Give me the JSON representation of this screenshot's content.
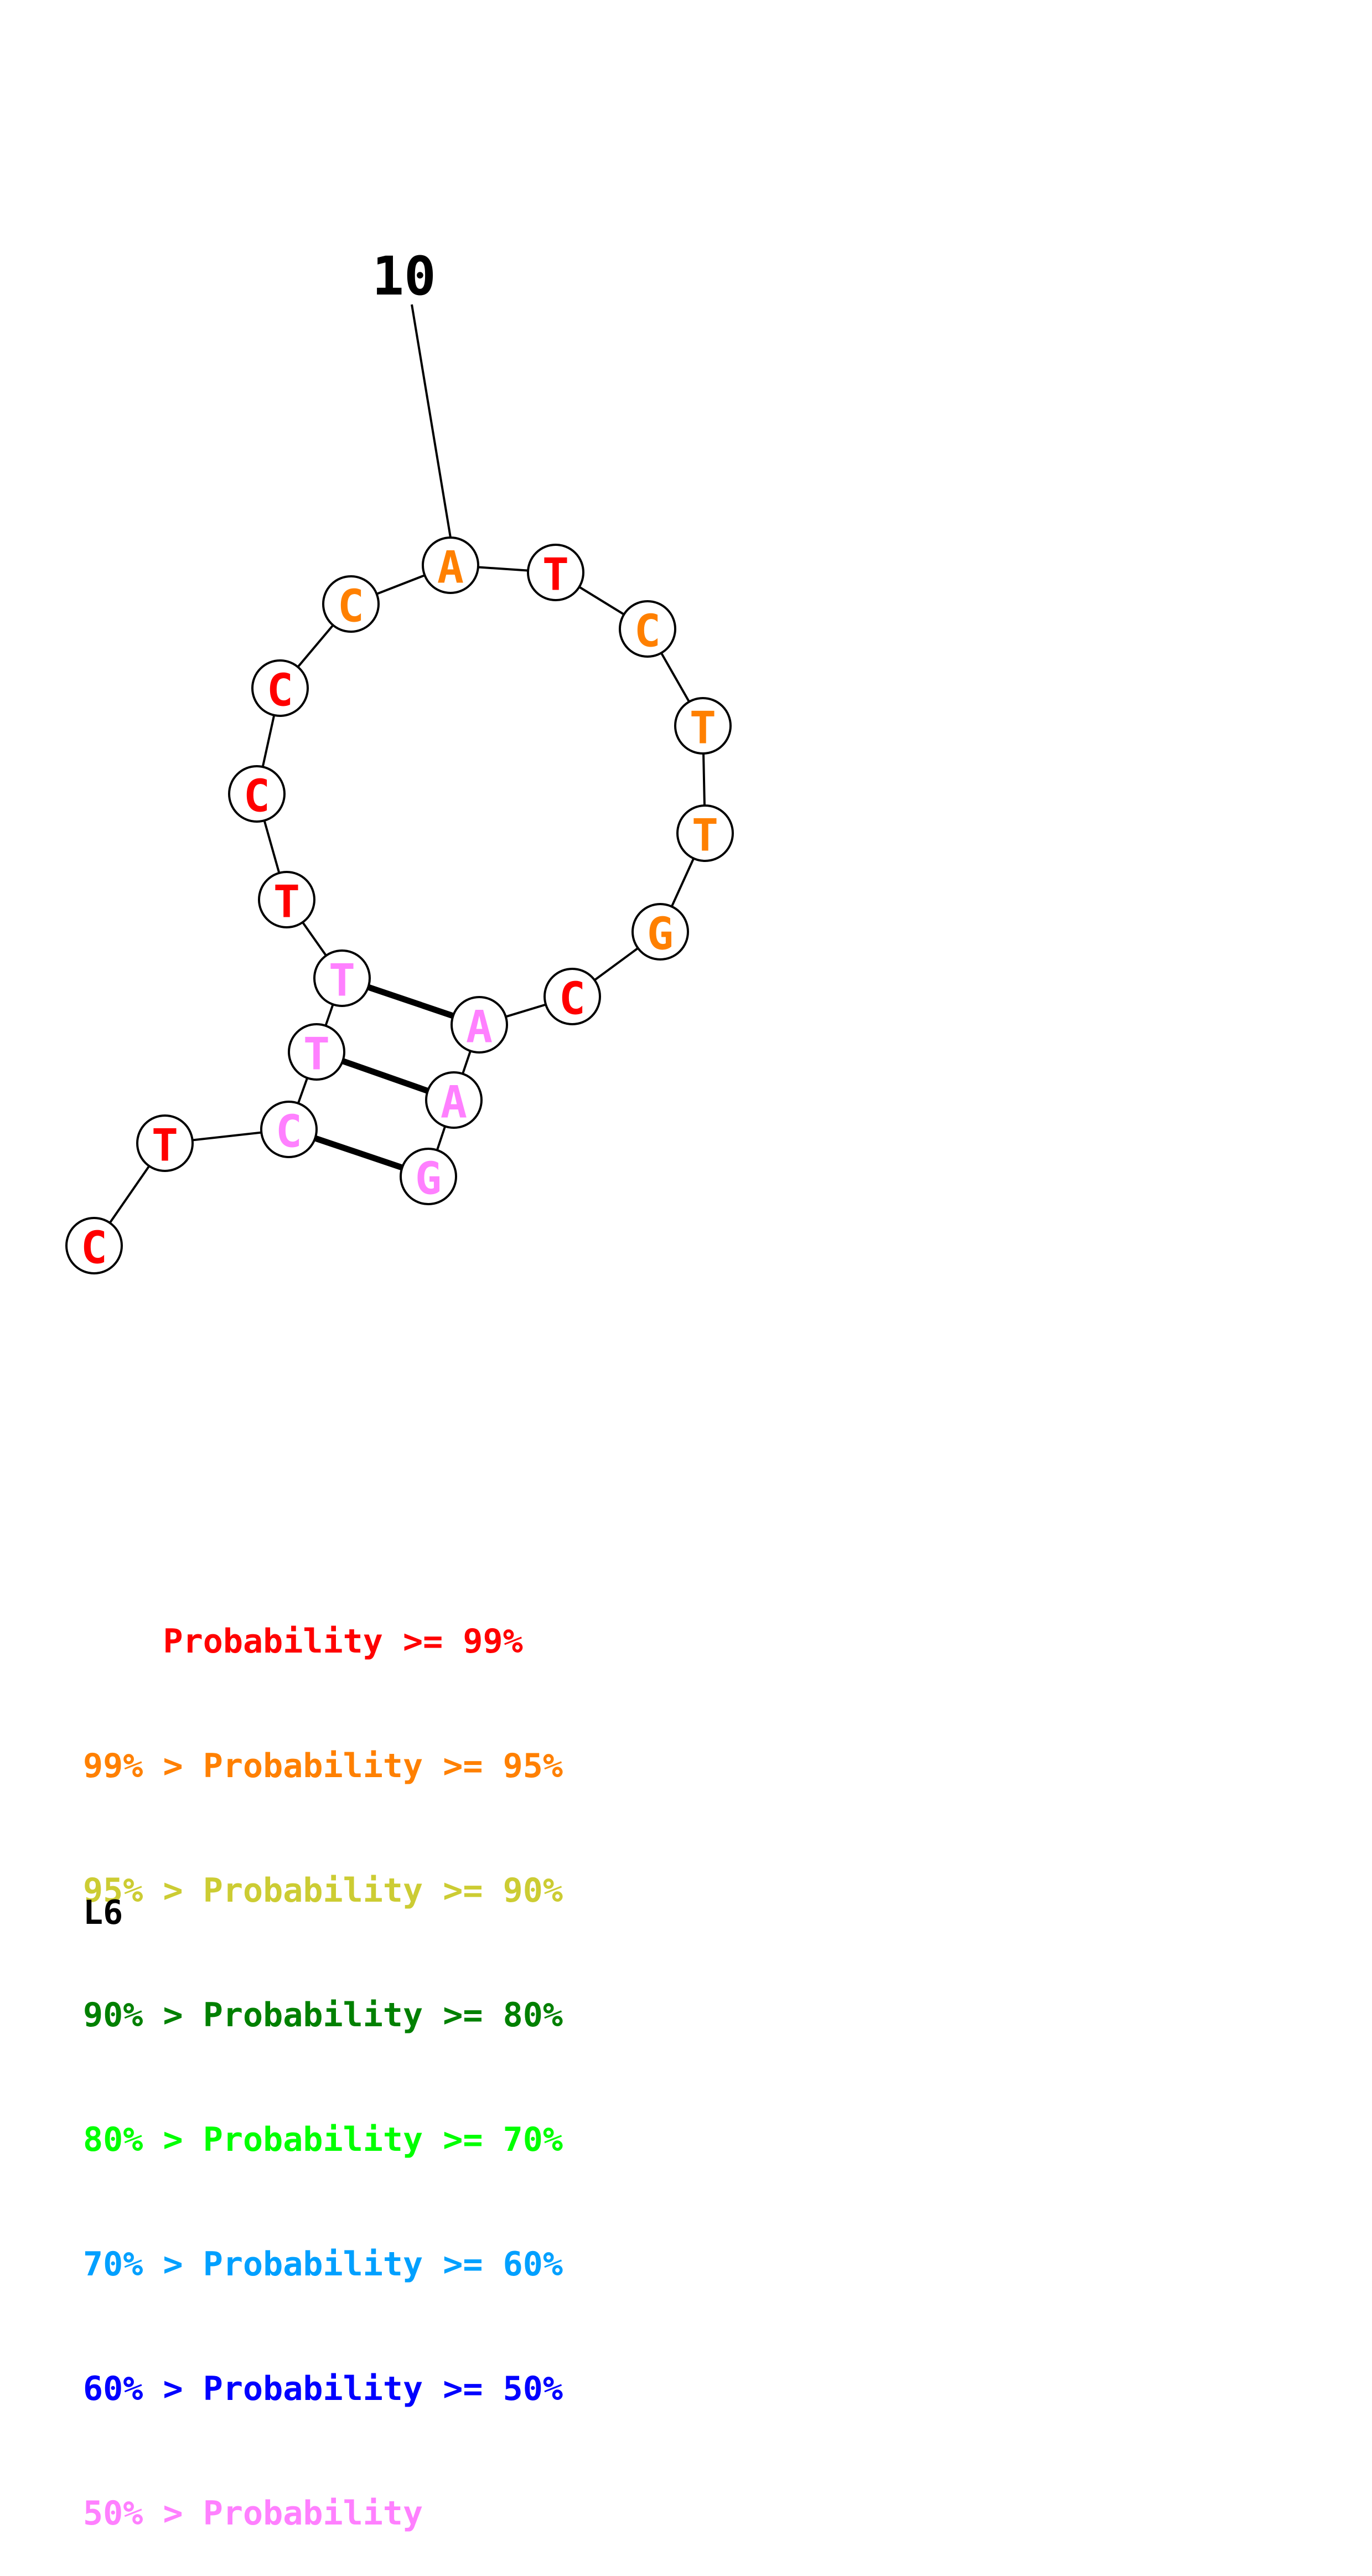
{
  "diagram": {
    "position_label": "10",
    "nucleotides": [
      {
        "letter": "C",
        "color": "#ff0000"
      },
      {
        "letter": "T",
        "color": "#ff0000"
      },
      {
        "letter": "C",
        "color": "#ff80ff"
      },
      {
        "letter": "T",
        "color": "#ff80ff"
      },
      {
        "letter": "T",
        "color": "#ff80ff"
      },
      {
        "letter": "T",
        "color": "#ff0000"
      },
      {
        "letter": "C",
        "color": "#ff0000"
      },
      {
        "letter": "C",
        "color": "#ff0000"
      },
      {
        "letter": "C",
        "color": "#ff8000"
      },
      {
        "letter": "A",
        "color": "#ff8000"
      },
      {
        "letter": "T",
        "color": "#ff0000"
      },
      {
        "letter": "C",
        "color": "#ff8000"
      },
      {
        "letter": "T",
        "color": "#ff8000"
      },
      {
        "letter": "T",
        "color": "#ff8000"
      },
      {
        "letter": "G",
        "color": "#ff8000"
      },
      {
        "letter": "C",
        "color": "#ff0000"
      },
      {
        "letter": "A",
        "color": "#ff80ff"
      },
      {
        "letter": "A",
        "color": "#ff80ff"
      },
      {
        "letter": "G",
        "color": "#ff80ff"
      }
    ],
    "base_pairs": [
      [
        3,
        19
      ],
      [
        4,
        18
      ],
      [
        5,
        17
      ]
    ]
  },
  "legend": [
    {
      "prefix": "    ",
      "text": "Probability >= 99%",
      "color": "#ff0000"
    },
    {
      "prefix": "99% > ",
      "text": "Probability >= 95%",
      "color": "#ff8000"
    },
    {
      "prefix": "95% > ",
      "text": "Probability >= 90%",
      "color": "#cccc33"
    },
    {
      "prefix": "90% > ",
      "text": "Probability >= 80%",
      "color": "#008000"
    },
    {
      "prefix": "80% > ",
      "text": "Probability >= 70%",
      "color": "#00ff00"
    },
    {
      "prefix": "70% > ",
      "text": "Probability >= 60%",
      "color": "#00a0ff"
    },
    {
      "prefix": "60% > ",
      "text": "Probability >= 50%",
      "color": "#0000ff"
    },
    {
      "prefix": "50% > ",
      "text": "Probability",
      "color": "#ff80ff"
    }
  ],
  "footer": {
    "label": "L6"
  }
}
